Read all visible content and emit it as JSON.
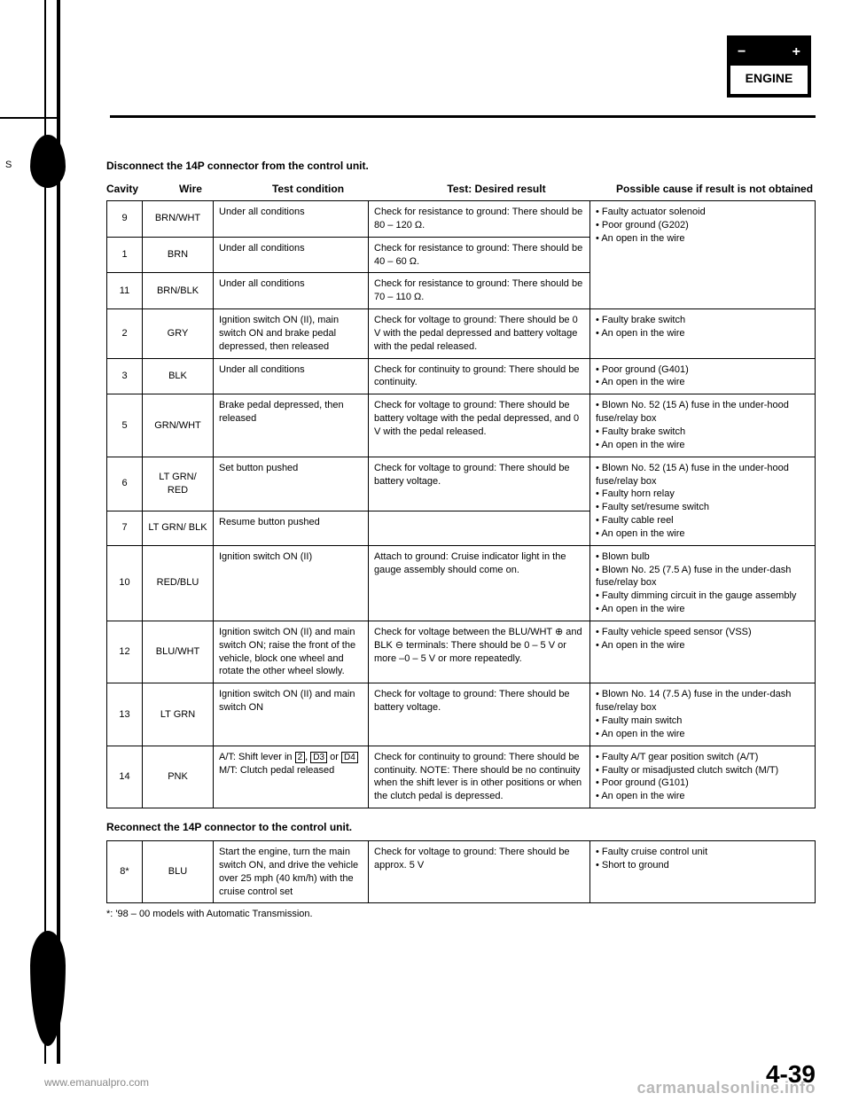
{
  "engine_box": {
    "minus": "−",
    "plus": "+",
    "label": "ENGINE"
  },
  "side_mark": "S",
  "instruction1": "Disconnect the 14P connector from the control unit.",
  "headers": {
    "cavity": "Cavity",
    "wire": "Wire",
    "cond": "Test condition",
    "result": "Test: Desired result",
    "cause": "Possible cause if result is not obtained"
  },
  "rows": [
    {
      "cavity": "9",
      "wire": "BRN/WHT",
      "cond": "Under all conditions",
      "result": "Check for resistance to ground: There should be 80 – 120 Ω.",
      "cause": [
        "Faulty actuator solenoid",
        "Poor ground (G202)",
        "An open in the wire"
      ],
      "merge_cause": 3
    },
    {
      "cavity": "1",
      "wire": "BRN",
      "cond": "Under all conditions",
      "result": "Check for resistance to ground: There should be 40 – 60 Ω."
    },
    {
      "cavity": "11",
      "wire": "BRN/BLK",
      "cond": "Under all conditions",
      "result": "Check for resistance to ground: There should be 70 – 110 Ω."
    },
    {
      "cavity": "2",
      "wire": "GRY",
      "cond": "Ignition switch ON (II), main switch ON and brake pedal depressed, then released",
      "result": "Check for voltage to ground: There should be 0 V with the pedal depressed and battery voltage with the pedal released.",
      "cause": [
        "Faulty brake switch",
        "An open in the wire"
      ]
    },
    {
      "cavity": "3",
      "wire": "BLK",
      "cond": "Under all conditions",
      "result": "Check for continuity to ground: There should be continuity.",
      "cause": [
        "Poor ground (G401)",
        "An open in the wire"
      ]
    },
    {
      "cavity": "5",
      "wire": "GRN/WHT",
      "cond": "Brake pedal depressed, then released",
      "result": "Check for voltage to ground: There should be battery voltage with the pedal depressed, and 0 V with the pedal released.",
      "cause": [
        "Blown No. 52 (15 A) fuse in the under-hood fuse/relay box",
        "Faulty brake switch",
        "An open in the wire"
      ]
    },
    {
      "cavity": "6",
      "wire": "LT GRN/ RED",
      "cond": "Set button pushed",
      "result": "Check for voltage to ground: There should be battery voltage.",
      "cause": [
        "Blown No. 52 (15 A) fuse in the under-hood fuse/relay box",
        "Faulty horn relay",
        "Faulty set/resume switch",
        "Faulty cable reel",
        "An open in the wire"
      ],
      "merge_cause": 2
    },
    {
      "cavity": "7",
      "wire": "LT GRN/ BLK",
      "cond": "Resume button pushed",
      "result": ""
    },
    {
      "cavity": "10",
      "wire": "RED/BLU",
      "cond": "Ignition switch ON (II)",
      "result": "Attach to ground: Cruise indicator light in the gauge assembly should come on.",
      "cause": [
        "Blown bulb",
        "Blown No. 25 (7.5 A) fuse in the under-dash fuse/relay box",
        "Faulty dimming circuit in the gauge assembly",
        "An open in the wire"
      ]
    },
    {
      "cavity": "12",
      "wire": "BLU/WHT",
      "cond": "Ignition switch ON (II) and main switch ON; raise the front of the vehicle, block one wheel and rotate the other wheel slowly.",
      "result": "Check for voltage between the BLU/WHT ⊕ and BLK ⊖ terminals: There should be 0 – 5 V or more –0 – 5 V or more repeatedly.",
      "cause": [
        "Faulty vehicle speed sensor (VSS)",
        "An open in the wire"
      ]
    },
    {
      "cavity": "13",
      "wire": "LT GRN",
      "cond": "Ignition switch ON (II) and main switch ON",
      "result": "Check for voltage to ground: There should be battery voltage.",
      "cause": [
        "Blown No. 14 (7.5 A) fuse in the under-dash fuse/relay box",
        "Faulty main switch",
        "An open in the wire"
      ]
    },
    {
      "cavity": "14",
      "wire": "PNK",
      "cond_html": true,
      "cond": "A/T: Shift lever in [2], [D3] or [D4]<br>M/T: Clutch pedal released",
      "result": "Check for continuity to ground: There should be continuity. NOTE: There should be no continuity when the shift lever is in other positions or when the clutch pedal is depressed.",
      "cause": [
        "Faulty A/T gear position switch (A/T)",
        "Faulty or misadjusted clutch switch (M/T)",
        "Poor ground (G101)",
        "An open in the wire"
      ]
    }
  ],
  "instruction2": "Reconnect the 14P connector to the control unit.",
  "row2": {
    "cavity": "8*",
    "wire": "BLU",
    "cond": "Start the engine, turn the main switch ON, and drive the vehicle over 25 mph (40 km/h) with the cruise control set",
    "result": "Check for voltage to ground: There should be approx. 5 V",
    "cause": [
      "Faulty cruise control unit",
      "Short to ground"
    ]
  },
  "footnote": "*: '98 – 00 models with Automatic Transmission.",
  "footer": {
    "url": "www.emanualpro.com",
    "page": "4-39",
    "watermark": "carmanualsonline.info"
  }
}
